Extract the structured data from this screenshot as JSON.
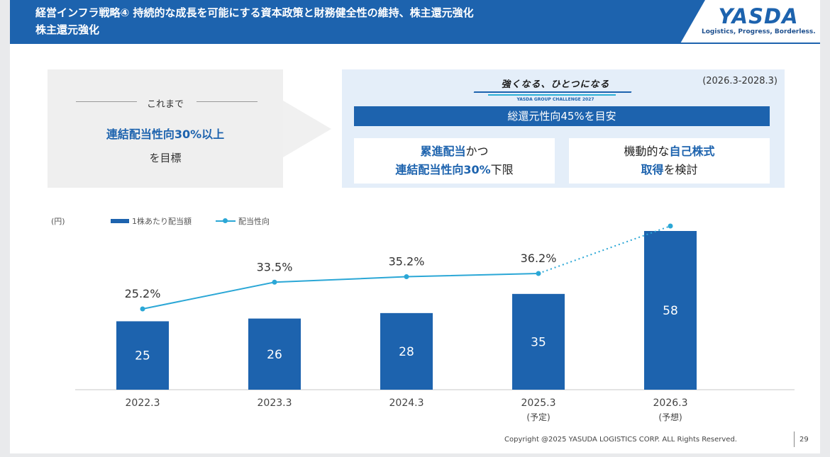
{
  "header": {
    "title_line1": "経営インフラ戦略④ 持続的な成長を可能にする資本政策と財務健全性の維持、株主還元強化",
    "title_line2": "株主還元強化"
  },
  "logo": {
    "name": "YASDA",
    "tagline": "Logistics, Progress, Borderless."
  },
  "before": {
    "label": "これまで",
    "target": "連結配当性向30%以上",
    "suffix": "を目標"
  },
  "plan": {
    "slogan": "強くなる、ひとつになる",
    "slogan_sub": "YASDA GROUP CHALLENGE 2027",
    "period": "(2026.3-2028.3)",
    "target": "総還元性向45%を目安",
    "card1": {
      "hl1": "累進配当",
      "t1": "かつ",
      "hl2": "連結配当性向30%",
      "t2": "下限"
    },
    "card2": {
      "t1": "機動的な",
      "hl1": "自己株式",
      "hl2": "取得",
      "t2": "を検討"
    }
  },
  "legend": {
    "unit": "(円)",
    "bar_label": "1株あたり配当額",
    "line_label": "配当性向"
  },
  "colors": {
    "brand": "#1d63ae",
    "line": "#2ba7d6"
  },
  "chart_data": {
    "type": "bar",
    "categories": [
      "2022.3",
      "2023.3",
      "2024.3",
      "2025.3",
      "2026.3"
    ],
    "category_notes": [
      "",
      "",
      "",
      "(予定)",
      "(予想)"
    ],
    "series": [
      {
        "name": "1株あたり配当額",
        "unit": "円",
        "values": [
          25,
          26,
          28,
          35,
          58
        ]
      },
      {
        "name": "配当性向",
        "type": "line",
        "unit": "%",
        "values": [
          25.2,
          33.5,
          35.2,
          36.2,
          null
        ],
        "value_labels": [
          "25.2%",
          "33.5%",
          "35.2%",
          "36.2%",
          ""
        ],
        "note": "2026.3 point unlabeled, connected with dotted line"
      }
    ]
  },
  "footer": {
    "copyright": "Copyright @2025 YASUDA LOGISTICS CORP.  ALL Rights Reserved.",
    "page": "29"
  }
}
